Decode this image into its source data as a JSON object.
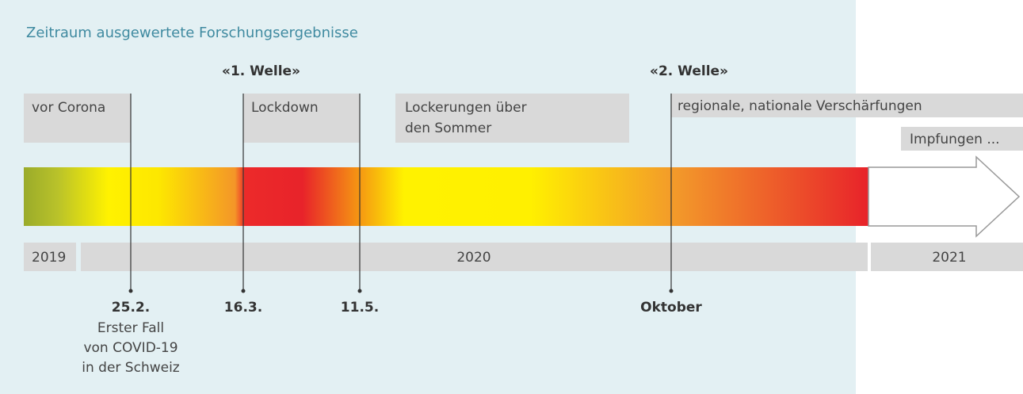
{
  "header": {
    "title": "Zeitraum ausgewertete Forschungsergebnisse"
  },
  "waves": [
    "«1. Welle»",
    "«2. Welle»"
  ],
  "phases": [
    {
      "lines": [
        "vor Corona"
      ]
    },
    {
      "lines": [
        "Lockdown"
      ]
    },
    {
      "lines": [
        "Lockerungen über",
        "den Sommer"
      ]
    },
    {
      "lines": [
        "regionale, nationale Verschärfungen"
      ]
    },
    {
      "lines": [
        "Impfungen ..."
      ]
    }
  ],
  "years": [
    "2019",
    "2020",
    "2021"
  ],
  "dates": [
    {
      "label": "25.2.",
      "note": [
        "Erster Fall",
        "von COVID-19",
        "in der Schweiz"
      ]
    },
    {
      "label": "16.3."
    },
    {
      "label": "11.5."
    },
    {
      "label": "Oktober"
    }
  ]
}
